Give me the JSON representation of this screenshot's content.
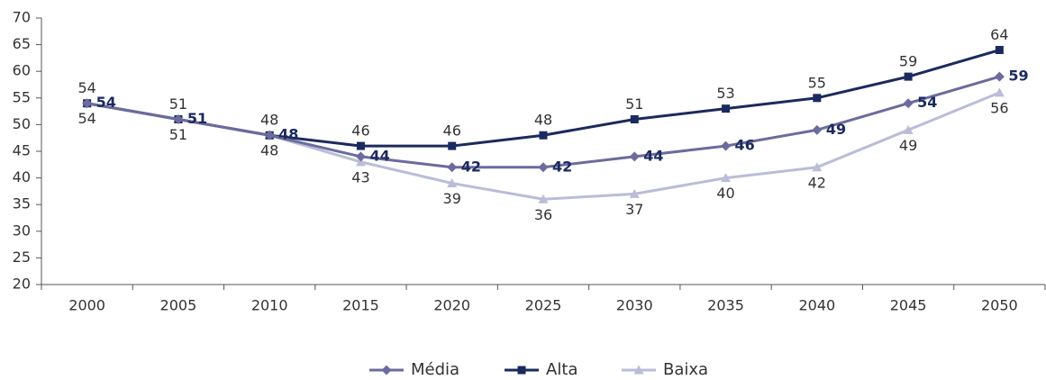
{
  "chart_data": {
    "type": "line",
    "categories": [
      "2000",
      "2005",
      "2010",
      "2015",
      "2020",
      "2025",
      "2030",
      "2035",
      "2040",
      "2045",
      "2050"
    ],
    "series": [
      {
        "name": "Média",
        "color": "#6b6b9e",
        "marker": "diamond",
        "label_position": "right",
        "values": [
          54,
          51,
          48,
          44,
          42,
          42,
          44,
          46,
          49,
          54,
          59
        ]
      },
      {
        "name": "Alta",
        "color": "#1b2a5e",
        "marker": "square",
        "label_position": "above",
        "values": [
          54,
          51,
          48,
          46,
          46,
          48,
          51,
          53,
          55,
          59,
          64
        ]
      },
      {
        "name": "Baixa",
        "color": "#b9bdd7",
        "marker": "triangle",
        "label_position": "below",
        "values": [
          54,
          51,
          48,
          43,
          39,
          36,
          37,
          40,
          42,
          49,
          56
        ]
      }
    ],
    "ylim": [
      20,
      70
    ],
    "yticks": [
      20,
      25,
      30,
      35,
      40,
      45,
      50,
      55,
      60,
      65,
      70
    ],
    "grid": false,
    "legend": "bottom"
  }
}
